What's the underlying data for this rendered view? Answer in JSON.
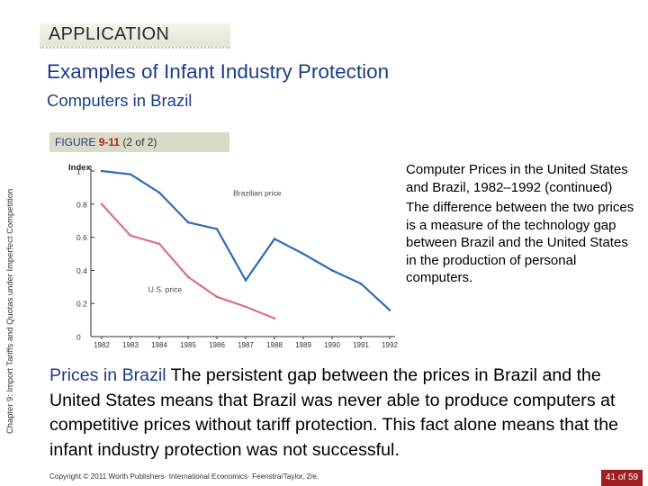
{
  "section_tag": "APPLICATION",
  "title": "Examples of Infant Industry Protection",
  "subtitle": "Computers in Brazil",
  "side_label": "Chapter 9: Import Tariffs and Quotas under Imperfect Competition",
  "figure": {
    "word": "FIGURE",
    "number": "9-11",
    "part": "(2 of 2)"
  },
  "caption": {
    "title": "Computer Prices in the United States and Brazil, 1982–1992 (continued)",
    "body": "The difference between the two prices is a measure of the technology gap between Brazil and the United States in the production of personal computers."
  },
  "body": {
    "lead": "Prices in Brazil",
    "text": " The persistent gap between the prices in Brazil and the United States means that Brazil was never able to produce computers at competitive prices without tariff protection. This fact alone means that the infant industry protection was not successful."
  },
  "footer": {
    "copyright": "Copyright © 2011 Worth Publishers· International Economics· Feenstra/Taylor, 2/e.",
    "page_current": "41",
    "page_sep": " of ",
    "page_total": "59"
  },
  "chart_data": {
    "type": "line",
    "ylabel": "Index",
    "x": [
      1982,
      1983,
      1984,
      1985,
      1986,
      1987,
      1988,
      1989,
      1990,
      1991,
      1992
    ],
    "x_tick_labels": [
      "1982",
      "1983",
      "1984",
      "1985",
      "1986",
      "1987",
      "1988",
      "1989",
      "1990",
      "1991",
      "1992"
    ],
    "y_ticks": [
      0,
      0.2,
      0.4,
      0.6,
      0.8,
      1
    ],
    "y_tick_labels": [
      "0",
      "0.2",
      "0.4",
      "0.6",
      "0.8",
      "1"
    ],
    "ylim": [
      0,
      1
    ],
    "series": [
      {
        "name": "Brazilian price",
        "color": "#2e6db6",
        "x": [
          1982,
          1983,
          1984,
          1985,
          1986,
          1987,
          1988,
          1989,
          1990,
          1991,
          1992
        ],
        "values": [
          1.0,
          0.98,
          0.87,
          0.69,
          0.65,
          0.34,
          0.59,
          0.5,
          0.4,
          0.32,
          0.16
        ]
      },
      {
        "name": "U.S. price",
        "color": "#e0707a",
        "x": [
          1982,
          1983,
          1984,
          1985,
          1986,
          1987,
          1988
        ],
        "values": [
          0.8,
          0.61,
          0.56,
          0.36,
          0.24,
          0.18,
          0.11
        ]
      }
    ],
    "colors": {
      "axis": "#333333"
    }
  },
  "colors": {
    "title": "#1b3d86",
    "figure_number": "#b22222",
    "page_badge": "#9d1f1f",
    "tag_bg": "#d9dac7"
  }
}
